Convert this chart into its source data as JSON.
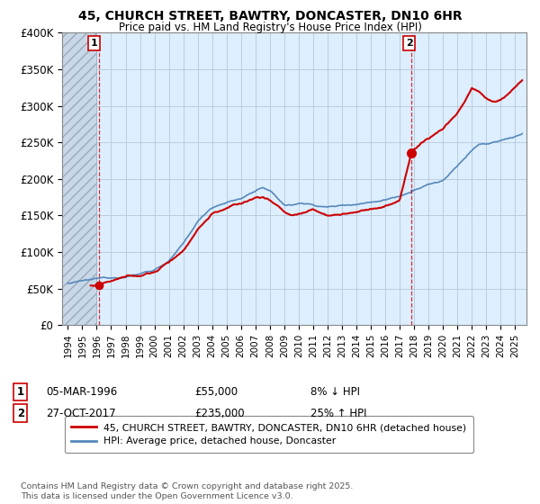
{
  "title": "45, CHURCH STREET, BAWTRY, DONCASTER, DN10 6HR",
  "subtitle": "Price paid vs. HM Land Registry's House Price Index (HPI)",
  "ylim": [
    0,
    400000
  ],
  "yticks": [
    0,
    50000,
    100000,
    150000,
    200000,
    250000,
    300000,
    350000,
    400000
  ],
  "ytick_labels": [
    "£0",
    "£50K",
    "£100K",
    "£150K",
    "£200K",
    "£250K",
    "£300K",
    "£350K",
    "£400K"
  ],
  "xlim_start": 1993.6,
  "xlim_end": 2025.8,
  "line1_color": "#cc0000",
  "line2_color": "#5588bb",
  "chart_bg": "#ddeeff",
  "transaction1_x": 1996.17,
  "transaction1_y": 55000,
  "transaction1_label": "1",
  "transaction1_date": "05-MAR-1996",
  "transaction1_price": "£55,000",
  "transaction1_hpi": "8% ↓ HPI",
  "transaction2_x": 2017.82,
  "transaction2_y": 235000,
  "transaction2_label": "2",
  "transaction2_date": "27-OCT-2017",
  "transaction2_price": "£235,000",
  "transaction2_hpi": "25% ↑ HPI",
  "legend1_text": "45, CHURCH STREET, BAWTRY, DONCASTER, DN10 6HR (detached house)",
  "legend2_text": "HPI: Average price, detached house, Doncaster",
  "footer": "Contains HM Land Registry data © Crown copyright and database right 2025.\nThis data is licensed under the Open Government Licence v3.0.",
  "background_color": "#ffffff",
  "grid_color": "#bbccdd"
}
